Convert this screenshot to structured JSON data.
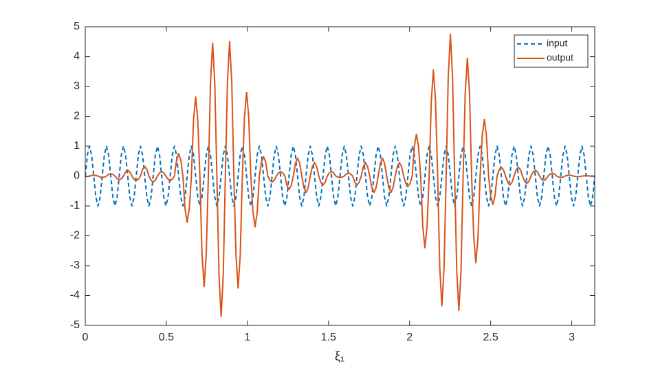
{
  "chart_data": {
    "type": "line",
    "x_label": "ξ₁",
    "x": [
      0,
      0.0131,
      0.0262,
      0.0393,
      0.0524,
      0.0655,
      0.0785,
      0.0916,
      0.1047,
      0.1178,
      0.1309,
      0.144,
      0.1571,
      0.1702,
      0.1833,
      0.1964,
      0.2094,
      0.2225,
      0.2356,
      0.2487,
      0.2618,
      0.2749,
      0.288,
      0.3011,
      0.3142,
      0.3273,
      0.3403,
      0.3534,
      0.3665,
      0.3796,
      0.3927,
      0.4058,
      0.4189,
      0.432,
      0.4451,
      0.4582,
      0.4712,
      0.4843,
      0.4974,
      0.5105,
      0.5236,
      0.5367,
      0.5498,
      0.5629,
      0.576,
      0.5891,
      0.6021,
      0.6152,
      0.6283,
      0.6414,
      0.6545,
      0.6676,
      0.6807,
      0.6938,
      0.7069,
      0.72,
      0.733,
      0.7461,
      0.7592,
      0.7723,
      0.7854,
      0.7985,
      0.8116,
      0.8247,
      0.8378,
      0.8509,
      0.8639,
      0.877,
      0.8901,
      0.9032,
      0.9163,
      0.9294,
      0.9425,
      0.9556,
      0.9687,
      0.9818,
      0.9948,
      1.0079,
      1.021,
      1.0341,
      1.0472,
      1.0603,
      1.0734,
      1.0865,
      1.0996,
      1.1127,
      1.1257,
      1.1388,
      1.1519,
      1.165,
      1.1781,
      1.1912,
      1.2043,
      1.2174,
      1.2305,
      1.2436,
      1.2566,
      1.2697,
      1.2828,
      1.2959,
      1.309,
      1.3221,
      1.3352,
      1.3483,
      1.3614,
      1.3745,
      1.3875,
      1.4006,
      1.4137,
      1.4268,
      1.4399,
      1.453,
      1.4661,
      1.4792,
      1.4923,
      1.5054,
      1.5184,
      1.5315,
      1.5446,
      1.5577,
      1.5708,
      1.5839,
      1.597,
      1.6101,
      1.6232,
      1.6363,
      1.6493,
      1.6624,
      1.6755,
      1.6886,
      1.7017,
      1.7148,
      1.7279,
      1.741,
      1.7541,
      1.7672,
      1.7802,
      1.7933,
      1.8064,
      1.8195,
      1.8326,
      1.8457,
      1.8588,
      1.8719,
      1.885,
      1.8981,
      1.9111,
      1.9242,
      1.9373,
      1.9504,
      1.9635,
      1.9766,
      1.9897,
      2.0028,
      2.0159,
      2.029,
      2.042,
      2.0551,
      2.0682,
      2.0813,
      2.0944,
      2.1075,
      2.1206,
      2.1337,
      2.1468,
      2.1599,
      2.1729,
      2.186,
      2.1991,
      2.2122,
      2.2253,
      2.2384,
      2.2515,
      2.2646,
      2.2777,
      2.2908,
      2.3038,
      2.3169,
      2.33,
      2.3431,
      2.3562,
      2.3693,
      2.3824,
      2.3955,
      2.4086,
      2.4217,
      2.4347,
      2.4478,
      2.4609,
      2.474,
      2.4871,
      2.5002,
      2.5133,
      2.5264,
      2.5395,
      2.5526,
      2.5656,
      2.5787,
      2.5918,
      2.6049,
      2.618,
      2.6311,
      2.6442,
      2.6573,
      2.6704,
      2.6835,
      2.6965,
      2.7096,
      2.7227,
      2.7358,
      2.7489,
      2.762,
      2.7751,
      2.7882,
      2.8013,
      2.8144,
      2.8274,
      2.8405,
      2.8536,
      2.8667,
      2.8798,
      2.8929,
      2.906,
      2.9191,
      2.9322,
      2.9453,
      2.9583,
      2.9714,
      2.9845,
      2.9976,
      3.0107,
      3.0238,
      3.0369,
      3.05,
      3.0631,
      3.0762,
      3.0892,
      3.1023,
      3.1154,
      3.1285,
      3.1416
    ],
    "series": [
      {
        "name": "input",
        "color": "#0072BD",
        "dash": true,
        "values": [
          0,
          0.707,
          1,
          0.707,
          0,
          -0.707,
          -1,
          -0.707,
          0,
          0.707,
          1,
          0.707,
          0,
          -0.707,
          -1,
          -0.707,
          0,
          0.707,
          1,
          0.707,
          0,
          -0.707,
          -1,
          -0.707,
          0,
          0.707,
          1,
          0.707,
          0,
          -0.707,
          -1,
          -0.707,
          0,
          0.707,
          1,
          0.707,
          0,
          -0.707,
          -1,
          -0.707,
          0,
          0.707,
          1,
          0.707,
          0,
          -0.707,
          -1,
          -0.707,
          0,
          0.707,
          1,
          0.707,
          0,
          -0.707,
          -1,
          -0.707,
          0,
          0.707,
          1,
          0.707,
          0,
          -0.707,
          -1,
          -0.707,
          0,
          0.707,
          1,
          0.707,
          0,
          -0.707,
          -1,
          -0.707,
          0,
          0.707,
          1,
          0.707,
          0,
          -0.707,
          -1,
          -0.707,
          0,
          0.707,
          1,
          0.707,
          0,
          -0.707,
          -1,
          -0.707,
          0,
          0.707,
          1,
          0.707,
          0,
          -0.707,
          -1,
          -0.707,
          0,
          0.707,
          1,
          0.707,
          0,
          -0.707,
          -1,
          -0.707,
          0,
          0.707,
          1,
          0.707,
          0,
          -0.707,
          -1,
          -0.707,
          0,
          0.707,
          1,
          0.707,
          0,
          -0.707,
          -1,
          -0.707,
          0,
          0.707,
          1,
          0.707,
          0,
          -0.707,
          -1,
          -0.707,
          0,
          0.707,
          1,
          0.707,
          0,
          -0.707,
          -1,
          -0.707,
          0,
          0.707,
          1,
          0.707,
          0,
          -0.707,
          -1,
          -0.707,
          0,
          0.707,
          1,
          0.707,
          0,
          -0.707,
          -1,
          -0.707,
          0,
          0.707,
          1,
          0.707,
          0,
          -0.707,
          -1,
          -0.707,
          0,
          0.707,
          1,
          0.707,
          0,
          -0.707,
          -1,
          -0.707,
          0,
          0.707,
          1,
          0.707,
          0,
          -0.707,
          -1,
          -0.707,
          0,
          0.707,
          1,
          0.707,
          0,
          -0.707,
          -1,
          -0.707,
          0,
          0.707,
          1,
          0.707,
          0,
          -0.707,
          -1,
          -0.707,
          0,
          0.707,
          1,
          0.707,
          0,
          -0.707,
          -1,
          -0.707,
          0,
          0.707,
          1,
          0.707,
          0,
          -0.707,
          -1,
          -0.707,
          0,
          0.707,
          1,
          0.707,
          0,
          -0.707,
          -1,
          -0.707,
          0,
          0.707,
          1,
          0.707,
          0,
          -0.707,
          -1,
          -0.707,
          0,
          0.707,
          1,
          0.707,
          0,
          -0.707,
          -1,
          -0.707,
          0,
          0.707,
          1,
          0.707,
          0,
          -0.707,
          -1,
          -0.707,
          0
        ]
      },
      {
        "name": "output",
        "color": "#D95319",
        "dash": false,
        "values": [
          -0.02,
          -0.014,
          0,
          0.021,
          0.03,
          0.021,
          0,
          -0.035,
          -0.05,
          -0.035,
          0,
          0.057,
          0.08,
          0.057,
          0,
          -0.085,
          -0.12,
          -0.085,
          0,
          0.141,
          0.2,
          0.141,
          0,
          -0.106,
          -0.15,
          -0.106,
          0,
          0.226,
          0.32,
          0.226,
          0,
          -0.141,
          -0.2,
          -0.141,
          0,
          0.106,
          0.15,
          0.106,
          0,
          -0.106,
          -0.15,
          -0.106,
          0,
          0.53,
          0.75,
          0.53,
          0,
          -1.096,
          -1.55,
          -1.096,
          0,
          1.874,
          2.65,
          1.874,
          0,
          -2.616,
          -3.7,
          -2.616,
          0,
          3.146,
          4.45,
          3.146,
          0,
          -3.323,
          -4.7,
          -3.323,
          0,
          3.182,
          4.5,
          3.182,
          0,
          -2.651,
          -3.75,
          -2.651,
          0,
          1.98,
          2.8,
          1.98,
          0,
          -1.202,
          -1.7,
          -1.202,
          0,
          0.46,
          0.65,
          0.46,
          0,
          -0.141,
          -0.2,
          -0.141,
          0,
          0.106,
          0.15,
          0.106,
          0,
          -0.318,
          -0.45,
          -0.318,
          0,
          0.424,
          0.6,
          0.424,
          0,
          -0.389,
          -0.55,
          -0.389,
          0,
          0.318,
          0.45,
          0.318,
          0,
          -0.212,
          -0.3,
          -0.212,
          0,
          0.106,
          0.15,
          0.106,
          0,
          -0.035,
          -0.05,
          -0.035,
          0,
          0.071,
          0.1,
          0.071,
          0,
          -0.212,
          -0.3,
          -0.212,
          0,
          0.318,
          0.45,
          0.318,
          0,
          -0.389,
          -0.55,
          -0.389,
          0,
          0.424,
          0.6,
          0.424,
          0,
          -0.389,
          -0.55,
          -0.389,
          0,
          0.318,
          0.45,
          0.318,
          0,
          -0.247,
          -0.35,
          -0.247,
          0,
          0.99,
          1.4,
          0.99,
          0,
          -1.697,
          -2.4,
          -1.697,
          0,
          2.51,
          3.55,
          2.51,
          0,
          -3.075,
          -4.35,
          -3.075,
          0,
          3.358,
          4.75,
          3.358,
          0,
          -3.182,
          -4.5,
          -3.182,
          0,
          2.793,
          3.95,
          2.793,
          0,
          -2.05,
          -2.9,
          -2.05,
          0,
          1.343,
          1.9,
          1.343,
          0,
          -0.672,
          -0.95,
          -0.672,
          0,
          0.212,
          0.3,
          0.212,
          0,
          -0.212,
          -0.3,
          -0.212,
          0,
          0.212,
          0.3,
          0.212,
          0,
          -0.177,
          -0.25,
          -0.177,
          0,
          0.141,
          0.2,
          0.141,
          0,
          -0.106,
          -0.15,
          -0.106,
          0,
          0.071,
          0.1,
          0.071,
          0,
          -0.035,
          -0.05,
          -0.035,
          0,
          0.021,
          0.03,
          0.021,
          0,
          -0.014,
          -0.02,
          -0.014,
          0,
          0.007,
          0.01,
          0.007,
          0,
          0,
          0
        ]
      }
    ],
    "xlim": [
      0,
      3.1416
    ],
    "xticks": [
      0,
      0.5,
      1,
      1.5,
      2,
      2.5,
      3
    ],
    "ylim": [
      -5,
      5
    ],
    "yticks": [
      -5,
      -4,
      -3,
      -2,
      -1,
      0,
      1,
      2,
      3,
      4,
      5
    ],
    "grid": false,
    "legend": "top-right"
  }
}
